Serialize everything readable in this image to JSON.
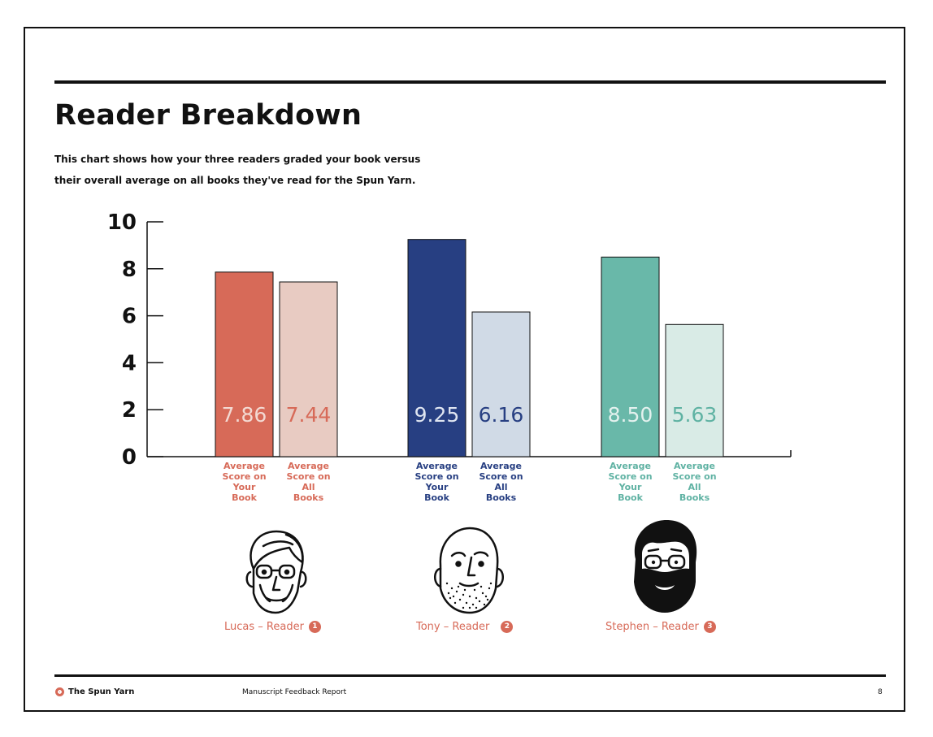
{
  "page": {
    "title": "Reader Breakdown",
    "subtitle": "This chart shows how your three readers graded your book versus their overall average on all books they've read for the Spun Yarn."
  },
  "chart_data": {
    "type": "bar",
    "title": "",
    "xlabel": "",
    "ylabel": "",
    "ylim": [
      0,
      10
    ],
    "yticks": [
      0,
      2,
      4,
      6,
      8,
      10
    ],
    "grid": false,
    "legend": "none",
    "groups": [
      {
        "reader": "Lucas – Reader",
        "number": "1",
        "bars": [
          {
            "label": "Average Score on Your Book",
            "value": 7.86,
            "display": "7.86",
            "fill": "#d76a58",
            "text_color": "#f3d9d2"
          },
          {
            "label": "Average Score on All Books",
            "value": 7.44,
            "display": "7.44",
            "fill": "#e8cbc2",
            "text_color": "#d76a58"
          }
        ],
        "label_color": "#d76a58"
      },
      {
        "reader": "Tony – Reader",
        "number": "2",
        "bars": [
          {
            "label": "Average Score on Your Book",
            "value": 9.25,
            "display": "9.25",
            "fill": "#273f82",
            "text_color": "#dfe5f1"
          },
          {
            "label": "Average Score on All Books",
            "value": 6.16,
            "display": "6.16",
            "fill": "#d0dae6",
            "text_color": "#273f82"
          }
        ],
        "label_color": "#273f82"
      },
      {
        "reader": "Stephen – Reader",
        "number": "3",
        "bars": [
          {
            "label": "Average Score on Your Book",
            "value": 8.5,
            "display": "8.50",
            "fill": "#69b8a9",
            "text_color": "#e3f1ee"
          },
          {
            "label": "Average Score on All Books",
            "value": 5.63,
            "display": "5.63",
            "fill": "#d9ebe6",
            "text_color": "#5fb2a3"
          }
        ],
        "label_color": "#5fb2a3"
      }
    ]
  },
  "readers": [
    {
      "name": "Lucas – Reader",
      "number": "1",
      "color": "#d76a58",
      "icon": "older-man-glasses-icon"
    },
    {
      "name": "Tony – Reader",
      "number": "2",
      "color": "#d76a58",
      "icon": "bald-man-stubble-icon"
    },
    {
      "name": "Stephen – Reader",
      "number": "3",
      "color": "#d76a58",
      "icon": "bearded-man-glasses-icon"
    }
  ],
  "footer": {
    "brand": "The Spun Yarn",
    "report": "Manuscript Feedback Report",
    "page_number": "8",
    "logo_icon": "spun-yarn-logo-icon"
  }
}
